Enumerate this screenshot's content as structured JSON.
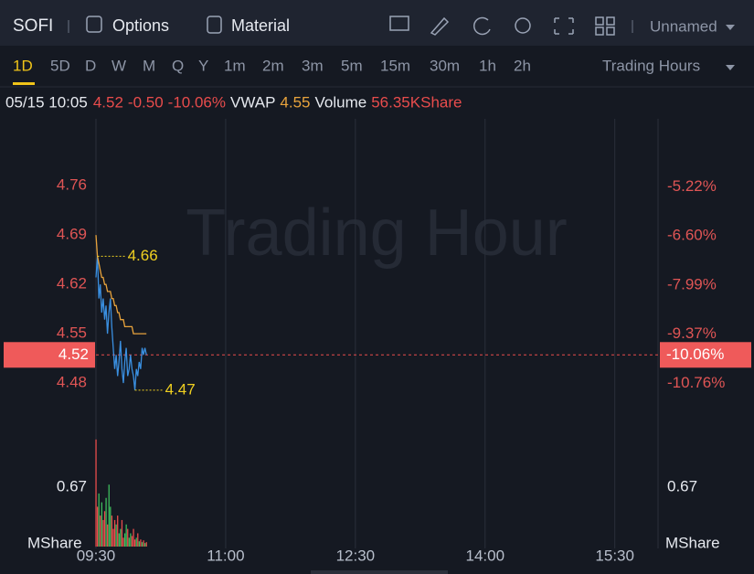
{
  "toolbar": {
    "symbol": "SOFI",
    "buttons": [
      "Options",
      "Material"
    ],
    "layout": "Unnamed"
  },
  "periods": [
    "1D",
    "5D",
    "D",
    "W",
    "M",
    "Q",
    "Y",
    "1m",
    "2m",
    "3m",
    "5m",
    "15m",
    "30m",
    "1h",
    "2h"
  ],
  "session": "Trading Hours",
  "info": {
    "time": "05/15 10:05",
    "price": "4.52",
    "change": "-0.50",
    "change_pct": "-10.06%",
    "vwap_label": "VWAP",
    "vwap": "4.55",
    "volume_label": "Volume",
    "volume": "56.35KShare"
  },
  "chart_data": {
    "type": "line",
    "watermark": "Trading Hour",
    "x": [
      "09:30",
      "09:31",
      "09:32",
      "09:33",
      "09:34",
      "09:35",
      "09:36",
      "09:37",
      "09:38",
      "09:39",
      "09:40",
      "09:41",
      "09:42",
      "09:43",
      "09:44",
      "09:45",
      "09:46",
      "09:47",
      "09:48",
      "09:49",
      "09:50",
      "09:51",
      "09:52",
      "09:53",
      "09:54",
      "09:55",
      "09:56",
      "09:57",
      "09:58",
      "09:59",
      "10:00",
      "10:01",
      "10:02",
      "10:03",
      "10:04",
      "10:05"
    ],
    "xlim": [
      "09:30",
      "16:00"
    ],
    "xticks": [
      "09:30",
      "11:00",
      "12:30",
      "14:00",
      "15:30"
    ],
    "ylim": [
      4.414,
      4.855
    ],
    "yticks": [
      4.48,
      4.55,
      4.62,
      4.69,
      4.76
    ],
    "y2lim": [
      -12.07,
      -3.29
    ],
    "y2ticks": [
      {
        "value": -10.76,
        "label": "-10.76%"
      },
      {
        "value": -9.37,
        "label": "-9.37%"
      },
      {
        "value": -7.99,
        "label": "-7.99%"
      },
      {
        "value": -6.6,
        "label": "-6.60%"
      },
      {
        "value": -5.22,
        "label": "-5.22%"
      }
    ],
    "series": [
      {
        "color": "#3a8fe0",
        "values": [
          4.63,
          4.66,
          4.6,
          4.62,
          4.58,
          4.6,
          4.57,
          4.59,
          4.55,
          4.58,
          4.6,
          4.56,
          4.53,
          4.5,
          4.52,
          4.49,
          4.51,
          4.54,
          4.5,
          4.48,
          4.51,
          4.53,
          4.49,
          4.5,
          4.52,
          4.5,
          4.49,
          4.47,
          4.5,
          4.49,
          4.51,
          4.5,
          4.53,
          4.52,
          4.53,
          4.52
        ]
      },
      {
        "color": "#e8a33c",
        "values": [
          4.69,
          4.66,
          4.65,
          4.64,
          4.63,
          4.63,
          4.62,
          4.62,
          4.61,
          4.61,
          4.61,
          4.6,
          4.6,
          4.59,
          4.59,
          4.58,
          4.58,
          4.57,
          4.57,
          4.57,
          4.56,
          4.56,
          4.56,
          4.56,
          4.56,
          4.56,
          4.55,
          4.55,
          4.55,
          4.55,
          4.55,
          4.55,
          4.55,
          4.55,
          4.55,
          4.55
        ]
      }
    ],
    "current": {
      "value": 4.52,
      "pct": {
        "value": -10.06,
        "label": "-10.06%"
      }
    },
    "annotations": [
      {
        "x": "09:31",
        "value": 4.66
      },
      {
        "x": "09:57",
        "value": 4.47
      }
    ],
    "volume": {
      "unit": "MShare",
      "ylim": [
        0,
        1.27
      ],
      "yticks": [
        0.67
      ],
      "values": [
        1.21,
        0.45,
        0.6,
        0.35,
        0.5,
        0.3,
        0.4,
        0.55,
        0.25,
        0.7,
        0.45,
        0.35,
        0.2,
        0.3,
        0.25,
        0.35,
        0.15,
        0.2,
        0.3,
        0.1,
        0.15,
        0.25,
        0.2,
        0.1,
        0.15,
        0.12,
        0.2,
        0.08,
        0.1,
        0.15,
        0.06,
        0.08,
        0.05,
        0.07,
        0.04,
        0.05
      ],
      "colors": [
        "#e84c4c",
        "#e84c4c",
        "#3dbb5c",
        "#e84c4c",
        "#3dbb5c",
        "#e84c4c",
        "#e84c4c",
        "#3dbb5c",
        "#e84c4c",
        "#3dbb5c",
        "#3dbb5c",
        "#e84c4c",
        "#e84c4c",
        "#e84c4c",
        "#3dbb5c",
        "#e84c4c",
        "#3dbb5c",
        "#3dbb5c",
        "#e84c4c",
        "#e84c4c",
        "#3dbb5c",
        "#3dbb5c",
        "#e84c4c",
        "#3dbb5c",
        "#3dbb5c",
        "#e84c4c",
        "#e84c4c",
        "#e84c4c",
        "#3dbb5c",
        "#e84c4c",
        "#3dbb5c",
        "#e84c4c",
        "#3dbb5c",
        "#e84c4c",
        "#3dbb5c",
        "#e84c4c"
      ]
    }
  }
}
